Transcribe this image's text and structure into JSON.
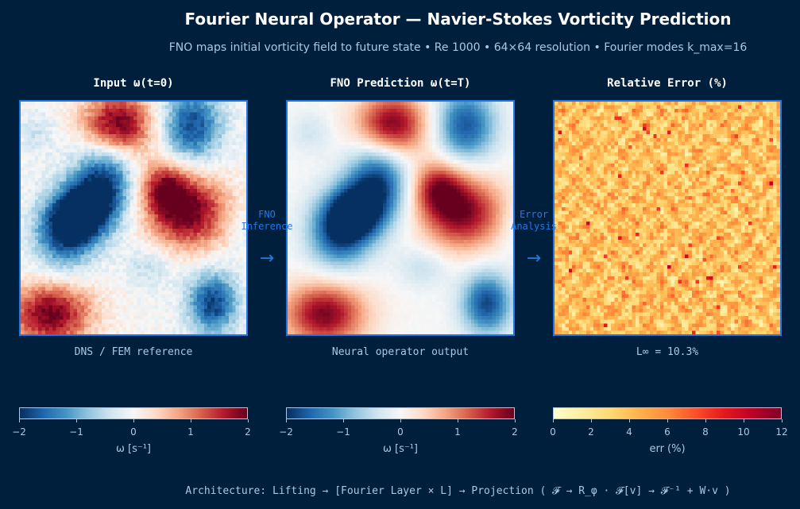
{
  "title": "Fourier Neural Operator — Navier-Stokes Vorticity Prediction",
  "subtitle": "FNO maps initial vorticity field to future state  •  Re 1000  •  64×64 resolution  •  Fourier modes k_max=16",
  "chart_data": [
    {
      "type": "heatmap",
      "title": "Input  ω(t=0)",
      "caption": "DNS / FEM reference",
      "colormap": "RdBu_r",
      "clim": [
        -2,
        2
      ],
      "colorbar_label": "ω  [s⁻¹]",
      "ticks": [
        "−2",
        "−1",
        "0",
        "1",
        "2"
      ],
      "grid_resolution": "64×64"
    },
    {
      "type": "heatmap",
      "title": "FNO Prediction  ω(t=T)",
      "caption": "Neural operator output",
      "colormap": "RdBu_r",
      "clim": [
        -2,
        2
      ],
      "colorbar_label": "ω  [s⁻¹]",
      "ticks": [
        "−2",
        "−1",
        "0",
        "1",
        "2"
      ],
      "grid_resolution": "64×64"
    },
    {
      "type": "heatmap",
      "title": "Relative Error  (%)",
      "caption": "L∞ = 10.3%",
      "colormap": "YlOrRd",
      "clim": [
        0,
        12
      ],
      "colorbar_label": "err (%)",
      "ticks": [
        "0",
        "2",
        "4",
        "6",
        "8",
        "10",
        "12"
      ],
      "grid_resolution": "64×64"
    }
  ],
  "arrows": [
    {
      "label1": "FNO",
      "label2": "Inference"
    },
    {
      "label1": "Error",
      "label2": "Analysis"
    }
  ],
  "arrow_glyph": "→",
  "footer": "Architecture: Lifting → [Fourier Layer × L] → Projection   ( 𝓕 → R_φ · 𝓕[v] → 𝓕⁻¹ + W·v )",
  "colors": {
    "background": "#001f3d",
    "accent": "#1f7ae8",
    "text_muted": "#a9c8e8"
  }
}
